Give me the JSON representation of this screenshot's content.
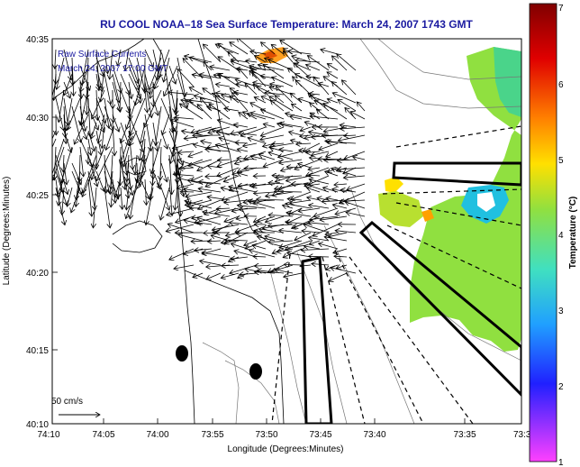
{
  "title": "RU COOL  NOAA–18  Sea Surface Temperature:  March 24, 2007 1743 GMT",
  "annotations": {
    "line1": "Raw Surface Currents",
    "line2": "March 24, 2007 17:00 GMT"
  },
  "x_axis": {
    "label": "Longitude (Degrees:Minutes)",
    "ticks": [
      "74:10",
      "74:05",
      "74:00",
      "73:55",
      "73:50",
      "73:45",
      "73:40",
      "73:35",
      "73:3"
    ]
  },
  "y_axis": {
    "label": "Latitude (Degrees:Minutes)",
    "ticks": [
      "40:35",
      "40:30",
      "40:25",
      "40:20",
      "40:15",
      "40:10"
    ]
  },
  "colorbar": {
    "label": "Temperature (°C)",
    "ticks": [
      "7",
      "6",
      "5",
      "4",
      "3",
      "2",
      "1"
    ],
    "colors": [
      "#800000",
      "#e00000",
      "#ff8000",
      "#ffe000",
      "#90e040",
      "#40e0c0",
      "#20a0ff",
      "#2020ff",
      "#ff40ff"
    ]
  },
  "scale_bar": {
    "label": "50 cm/s"
  }
}
